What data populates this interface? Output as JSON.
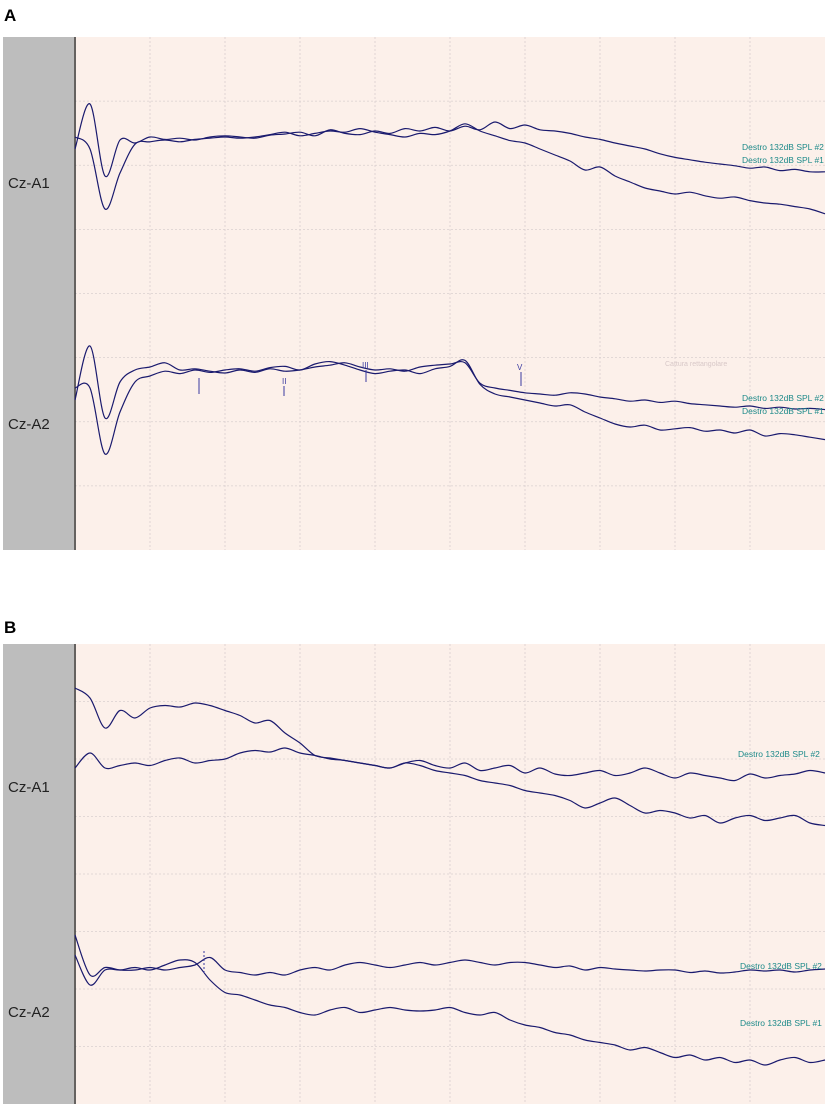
{
  "panels": [
    {
      "letter": "A",
      "channels": [
        {
          "name": "Cz-A1",
          "traces": [
            "Destro 132dB SPL #2",
            "Destro 132dB SPL #1"
          ]
        },
        {
          "name": "Cz-A2",
          "traces": [
            "Destro 132dB SPL #2",
            "Destro 132dB SPL #1"
          ],
          "peaks": [
            "I",
            "II",
            "III",
            "V"
          ]
        }
      ],
      "watermark": "Cattura rettangolare"
    },
    {
      "letter": "B",
      "channels": [
        {
          "name": "Cz-A1",
          "traces": [
            "Destro 132dB SPL #2"
          ]
        },
        {
          "name": "Cz-A2",
          "traces": [
            "Destro 132dB SPL #2",
            "Destro 132dB SPL #1"
          ],
          "peaks": [
            "I"
          ]
        }
      ]
    }
  ],
  "colors": {
    "plot_bg": "#fcf0ea",
    "grid": "#d9cfcf",
    "label_strip": "#bdbdbd",
    "trace": "#1a1a6e",
    "trace_label": "#1e8a8a"
  },
  "chart_data": [
    {
      "type": "line",
      "title": "A",
      "xlabel": "",
      "ylabel": "",
      "grid": true,
      "x": [
        0,
        0.02,
        0.04,
        0.06,
        0.08,
        0.1,
        0.12,
        0.14,
        0.16,
        0.18,
        0.2,
        0.22,
        0.24,
        0.26,
        0.28,
        0.3,
        0.32,
        0.34,
        0.36,
        0.38,
        0.4,
        0.42,
        0.44,
        0.46,
        0.48,
        0.5,
        0.52,
        0.54,
        0.56,
        0.58,
        0.6,
        0.62,
        0.64,
        0.66,
        0.68,
        0.7,
        0.72,
        0.74,
        0.76,
        0.78,
        0.8,
        0.82,
        0.84,
        0.86,
        0.88,
        0.9,
        0.92,
        0.94,
        0.96,
        0.98,
        1
      ],
      "series": [
        {
          "name": "Cz-A1 Destro 132dB SPL #2",
          "values": [
            0.1,
            0.85,
            -0.35,
            0.25,
            0.2,
            0.3,
            0.26,
            0.28,
            0.25,
            0.3,
            0.32,
            0.3,
            0.28,
            0.33,
            0.35,
            0.38,
            0.32,
            0.42,
            0.36,
            0.34,
            0.4,
            0.36,
            0.44,
            0.4,
            0.46,
            0.4,
            0.48,
            0.42,
            0.55,
            0.44,
            0.5,
            0.42,
            0.4,
            0.36,
            0.3,
            0.26,
            0.2,
            0.15,
            0.1,
            0.02,
            -0.04,
            -0.08,
            -0.12,
            -0.15,
            -0.18,
            -0.22,
            -0.2,
            -0.26,
            -0.24,
            -0.28,
            -0.28
          ]
        },
        {
          "name": "Cz-A1 Destro 132dB SPL #1",
          "values": [
            0.3,
            0.1,
            -0.9,
            -0.3,
            0.18,
            0.22,
            0.25,
            0.22,
            0.26,
            0.28,
            0.3,
            0.28,
            0.3,
            0.34,
            0.38,
            0.32,
            0.36,
            0.4,
            0.38,
            0.44,
            0.38,
            0.34,
            0.3,
            0.36,
            0.34,
            0.4,
            0.52,
            0.4,
            0.32,
            0.24,
            0.2,
            0.1,
            0.0,
            -0.1,
            -0.25,
            -0.2,
            -0.35,
            -0.45,
            -0.55,
            -0.6,
            -0.65,
            -0.62,
            -0.68,
            -0.72,
            -0.7,
            -0.76,
            -0.8,
            -0.82,
            -0.86,
            -0.9,
            -0.98
          ]
        },
        {
          "name": "Cz-A2 Destro 132dB SPL #2",
          "values": [
            0.0,
            0.9,
            -0.3,
            0.3,
            0.5,
            0.55,
            0.62,
            0.5,
            0.52,
            0.48,
            0.45,
            0.5,
            0.46,
            0.52,
            0.48,
            0.5,
            0.55,
            0.58,
            0.62,
            0.55,
            0.5,
            0.52,
            0.48,
            0.55,
            0.58,
            0.6,
            0.62,
            0.28,
            0.2,
            0.16,
            0.12,
            0.1,
            0.08,
            0.12,
            0.1,
            0.05,
            0.02,
            -0.02,
            0.0,
            -0.04,
            -0.02,
            -0.06,
            -0.08,
            -0.1,
            -0.12,
            -0.1,
            -0.14,
            -0.12,
            -0.15,
            -0.14,
            -0.16
          ]
        },
        {
          "name": "Cz-A2 Destro 132dB SPL #1",
          "values": [
            0.2,
            0.2,
            -0.9,
            -0.2,
            0.3,
            0.4,
            0.48,
            0.44,
            0.5,
            0.46,
            0.5,
            0.52,
            0.48,
            0.54,
            0.56,
            0.5,
            0.6,
            0.64,
            0.58,
            0.5,
            0.44,
            0.48,
            0.5,
            0.44,
            0.52,
            0.56,
            0.66,
            0.26,
            0.1,
            0.05,
            0.0,
            -0.05,
            -0.1,
            -0.08,
            -0.2,
            -0.3,
            -0.4,
            -0.45,
            -0.42,
            -0.5,
            -0.48,
            -0.46,
            -0.52,
            -0.5,
            -0.55,
            -0.5,
            -0.6,
            -0.56,
            -0.58,
            -0.62,
            -0.66
          ]
        }
      ]
    },
    {
      "type": "line",
      "title": "B",
      "xlabel": "",
      "ylabel": "",
      "grid": true,
      "x": [
        0,
        0.02,
        0.04,
        0.06,
        0.08,
        0.1,
        0.12,
        0.14,
        0.16,
        0.18,
        0.2,
        0.22,
        0.24,
        0.26,
        0.28,
        0.3,
        0.32,
        0.34,
        0.36,
        0.38,
        0.4,
        0.42,
        0.44,
        0.46,
        0.48,
        0.5,
        0.52,
        0.54,
        0.56,
        0.58,
        0.6,
        0.62,
        0.64,
        0.66,
        0.68,
        0.7,
        0.72,
        0.74,
        0.76,
        0.78,
        0.8,
        0.82,
        0.84,
        0.86,
        0.88,
        0.9,
        0.92,
        0.94,
        0.96,
        0.98,
        1
      ],
      "series": [
        {
          "name": "Cz-A1 Destro 132dB SPL #2",
          "values": [
            1.0,
            0.8,
            0.2,
            0.55,
            0.4,
            0.6,
            0.65,
            0.62,
            0.7,
            0.65,
            0.55,
            0.45,
            0.3,
            0.35,
            0.1,
            -0.1,
            -0.35,
            -0.4,
            -0.45,
            -0.5,
            -0.55,
            -0.6,
            -0.5,
            -0.45,
            -0.55,
            -0.6,
            -0.5,
            -0.65,
            -0.6,
            -0.55,
            -0.7,
            -0.6,
            -0.72,
            -0.75,
            -0.7,
            -0.65,
            -0.75,
            -0.7,
            -0.6,
            -0.7,
            -0.8,
            -0.7,
            -0.75,
            -0.8,
            -0.85,
            -0.72,
            -0.8,
            -0.75,
            -0.72,
            -0.65,
            -0.7
          ]
        },
        {
          "name": "Cz-A1 Destro 132dB SPL #1",
          "values": [
            -0.6,
            -0.3,
            -0.6,
            -0.55,
            -0.5,
            -0.55,
            -0.45,
            -0.4,
            -0.5,
            -0.45,
            -0.42,
            -0.3,
            -0.25,
            -0.28,
            -0.2,
            -0.3,
            -0.35,
            -0.42,
            -0.45,
            -0.5,
            -0.55,
            -0.6,
            -0.5,
            -0.55,
            -0.65,
            -0.7,
            -0.75,
            -0.85,
            -0.9,
            -0.95,
            -1.05,
            -1.1,
            -1.15,
            -1.25,
            -1.4,
            -1.3,
            -1.2,
            -1.35,
            -1.5,
            -1.45,
            -1.5,
            -1.6,
            -1.55,
            -1.7,
            -1.6,
            -1.55,
            -1.65,
            -1.6,
            -1.55,
            -1.7,
            -1.75
          ]
        },
        {
          "name": "Cz-A2 Destro 132dB SPL #2",
          "values": [
            1.0,
            0.2,
            0.35,
            0.3,
            0.3,
            0.35,
            0.3,
            0.35,
            0.4,
            0.55,
            0.3,
            0.25,
            0.2,
            0.25,
            0.2,
            0.3,
            0.35,
            0.3,
            0.4,
            0.45,
            0.4,
            0.35,
            0.4,
            0.45,
            0.4,
            0.45,
            0.5,
            0.45,
            0.4,
            0.45,
            0.45,
            0.4,
            0.35,
            0.38,
            0.3,
            0.35,
            0.32,
            0.3,
            0.28,
            0.3,
            0.3,
            0.25,
            0.28,
            0.24,
            0.26,
            0.3,
            0.28,
            0.3,
            0.26,
            0.3,
            0.32
          ]
        },
        {
          "name": "Cz-A2 Destro 132dB SPL #1",
          "values": [
            0.6,
            0.0,
            0.3,
            0.3,
            0.35,
            0.3,
            0.4,
            0.5,
            0.45,
            0.1,
            -0.15,
            -0.2,
            -0.3,
            -0.4,
            -0.45,
            -0.55,
            -0.6,
            -0.5,
            -0.45,
            -0.55,
            -0.5,
            -0.45,
            -0.5,
            -0.52,
            -0.5,
            -0.45,
            -0.55,
            -0.6,
            -0.55,
            -0.7,
            -0.8,
            -0.85,
            -0.95,
            -1.0,
            -1.1,
            -1.15,
            -1.2,
            -1.3,
            -1.25,
            -1.35,
            -1.45,
            -1.4,
            -1.5,
            -1.45,
            -1.55,
            -1.5,
            -1.6,
            -1.5,
            -1.45,
            -1.55,
            -1.5
          ]
        }
      ]
    }
  ]
}
